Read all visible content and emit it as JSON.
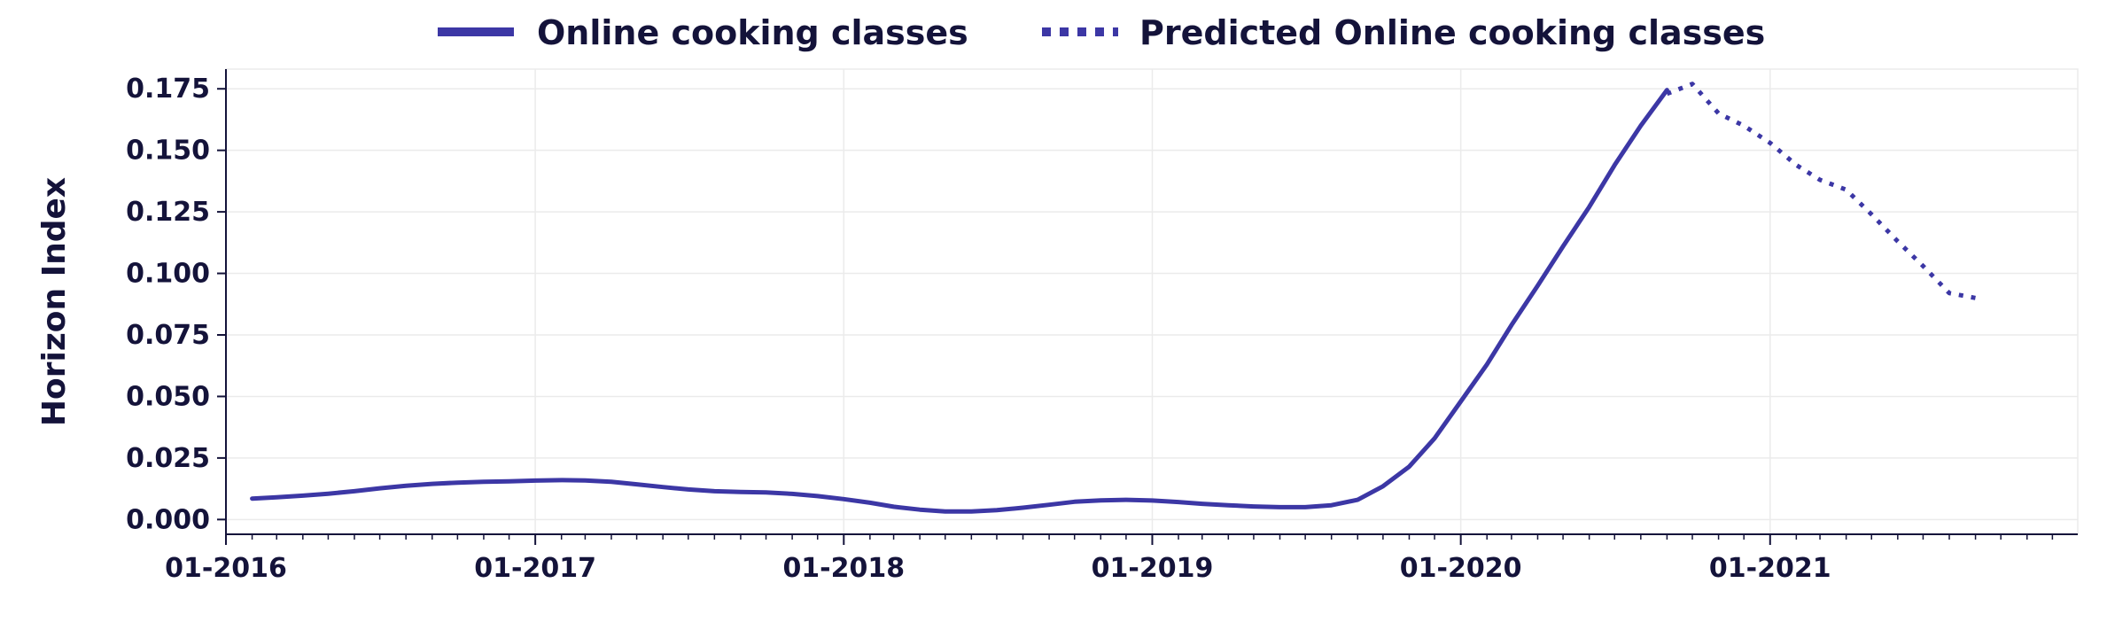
{
  "chart_data": {
    "type": "line",
    "title": "",
    "xlabel": "",
    "ylabel": "Horizon Index",
    "x_type": "date",
    "xlim": [
      "2016-01-01",
      "2021-12-31"
    ],
    "ylim": [
      -0.006,
      0.183
    ],
    "x_ticks": [
      "2016-01-01",
      "2017-01-01",
      "2018-01-01",
      "2019-01-01",
      "2020-01-01",
      "2021-01-01"
    ],
    "x_tick_labels": [
      "01-2016",
      "01-2017",
      "01-2018",
      "01-2019",
      "01-2020",
      "01-2021"
    ],
    "y_ticks": [
      0.0,
      0.025,
      0.05,
      0.075,
      0.1,
      0.125,
      0.15,
      0.175
    ],
    "y_tick_labels": [
      "0.000",
      "0.025",
      "0.050",
      "0.075",
      "0.100",
      "0.125",
      "0.150",
      "0.175"
    ],
    "grid": true,
    "legend_position": "top-center",
    "series": [
      {
        "name": "Online cooking classes",
        "style": "solid",
        "color": "#3c37a5",
        "x": [
          "2016-02-01",
          "2016-03-01",
          "2016-04-01",
          "2016-05-01",
          "2016-06-01",
          "2016-07-01",
          "2016-08-01",
          "2016-09-01",
          "2016-10-01",
          "2016-11-01",
          "2016-12-01",
          "2017-01-01",
          "2017-02-01",
          "2017-03-01",
          "2017-04-01",
          "2017-05-01",
          "2017-06-01",
          "2017-07-01",
          "2017-08-01",
          "2017-09-01",
          "2017-10-01",
          "2017-11-01",
          "2017-12-01",
          "2018-01-01",
          "2018-02-01",
          "2018-03-01",
          "2018-04-01",
          "2018-05-01",
          "2018-06-01",
          "2018-07-01",
          "2018-08-01",
          "2018-09-01",
          "2018-10-01",
          "2018-11-01",
          "2018-12-01",
          "2019-01-01",
          "2019-02-01",
          "2019-03-01",
          "2019-04-01",
          "2019-05-01",
          "2019-06-01",
          "2019-07-01",
          "2019-08-01",
          "2019-09-01",
          "2019-10-01",
          "2019-11-01",
          "2019-12-01",
          "2020-01-01",
          "2020-02-01",
          "2020-03-01",
          "2020-04-01",
          "2020-05-01",
          "2020-06-01",
          "2020-07-01",
          "2020-08-01",
          "2020-09-01"
        ],
        "values": [
          0.0085,
          0.009,
          0.0097,
          0.0105,
          0.0115,
          0.0127,
          0.0137,
          0.0145,
          0.015,
          0.0153,
          0.0155,
          0.0158,
          0.016,
          0.0159,
          0.0153,
          0.0143,
          0.0132,
          0.0122,
          0.0115,
          0.0112,
          0.011,
          0.0104,
          0.0095,
          0.0083,
          0.0068,
          0.0052,
          0.004,
          0.0033,
          0.0033,
          0.0038,
          0.0048,
          0.006,
          0.0072,
          0.0078,
          0.008,
          0.0077,
          0.0071,
          0.0064,
          0.0058,
          0.0053,
          0.005,
          0.005,
          0.0058,
          0.008,
          0.0135,
          0.0215,
          0.033,
          0.048,
          0.063,
          0.079,
          0.095,
          0.111,
          0.127,
          0.144,
          0.16,
          0.1745
        ]
      },
      {
        "name": "Predicted Online cooking classes",
        "style": "dotted",
        "color": "#3c37a5",
        "x": [
          "2020-09-01",
          "2020-10-01",
          "2020-11-01",
          "2020-12-01",
          "2021-01-01",
          "2021-02-01",
          "2021-03-01",
          "2021-04-01",
          "2021-05-01",
          "2021-06-01",
          "2021-07-01",
          "2021-08-01",
          "2021-09-01"
        ],
        "values": [
          0.173,
          0.177,
          0.165,
          0.16,
          0.153,
          0.144,
          0.138,
          0.134,
          0.124,
          0.113,
          0.103,
          0.092,
          0.09
        ]
      }
    ]
  }
}
